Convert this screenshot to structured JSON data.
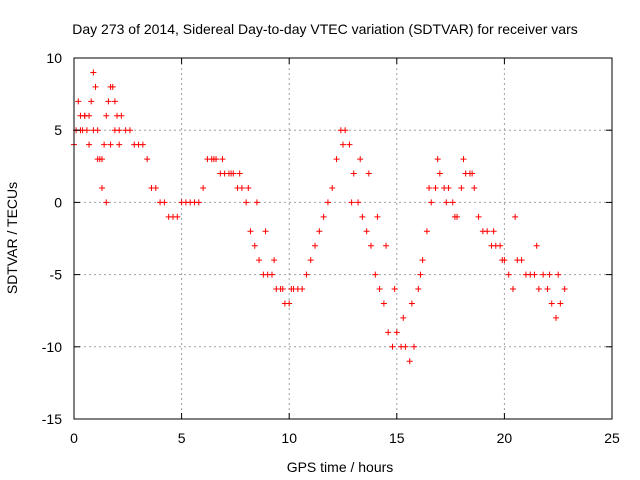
{
  "chart_data": {
    "type": "scatter",
    "title": "Day 273 of 2014, Sidereal Day-to-day VTEC variation (SDTVAR) for receiver vars",
    "xlabel": "GPS time / hours",
    "ylabel": "SDTVAR / TECUs",
    "xlim": [
      0,
      25
    ],
    "ylim": [
      -15,
      10
    ],
    "xticks": [
      0,
      5,
      10,
      15,
      20,
      25
    ],
    "yticks": [
      -15,
      -10,
      -5,
      0,
      5,
      10
    ],
    "xtick_labels": [
      "0",
      "5",
      "10",
      "15",
      "20",
      "25"
    ],
    "ytick_labels": [
      "-15",
      "-10",
      "-5",
      "0",
      "5",
      "10"
    ],
    "grid": true,
    "marker": "+",
    "series": [
      {
        "name": "SDTVAR",
        "color": "#ff0000",
        "x": [
          0.0,
          0.1,
          0.2,
          0.3,
          0.4,
          0.5,
          0.6,
          0.7,
          0.8,
          0.9,
          1.0,
          1.1,
          1.2,
          1.3,
          1.4,
          1.5,
          1.6,
          1.7,
          1.8,
          1.9,
          2.0,
          2.1,
          2.2,
          2.4,
          2.6,
          2.8,
          3.0,
          3.2,
          3.4,
          3.6,
          3.8,
          4.0,
          4.2,
          4.4,
          4.6,
          4.8,
          5.0,
          5.2,
          5.4,
          5.6,
          5.8,
          6.0,
          6.2,
          6.4,
          6.6,
          6.8,
          7.0,
          7.2,
          7.4,
          7.6,
          7.8,
          8.0,
          8.2,
          8.4,
          8.6,
          8.8,
          9.0,
          9.2,
          9.4,
          9.6,
          9.8,
          10.0,
          10.2,
          10.4,
          10.6,
          10.8,
          11.0,
          11.2,
          11.4,
          11.6,
          11.8,
          12.0,
          12.2,
          12.4,
          12.6,
          12.8,
          13.0,
          13.2,
          13.4,
          13.6,
          13.8,
          14.0,
          14.2,
          14.4,
          14.6,
          14.8,
          15.0,
          15.2,
          15.4,
          15.6,
          15.8,
          16.0,
          16.2,
          16.4,
          16.6,
          16.8,
          17.0,
          17.2,
          17.4,
          17.6,
          17.8,
          18.0,
          18.2,
          18.4,
          18.6,
          18.8,
          19.0,
          19.2,
          19.4,
          19.6,
          19.8,
          20.0,
          20.2,
          20.4,
          20.6,
          20.8,
          21.0,
          21.2,
          21.4,
          21.6,
          21.8,
          22.0,
          22.2,
          22.4,
          22.6,
          22.8,
          0.3,
          0.5,
          0.7,
          0.9,
          1.1,
          1.3,
          1.5,
          1.7,
          1.9,
          2.1,
          6.5,
          6.9,
          7.3,
          7.7,
          8.1,
          8.5,
          8.9,
          9.3,
          9.7,
          10.1,
          12.5,
          12.9,
          13.3,
          13.7,
          14.1,
          14.5,
          14.9,
          15.3,
          15.7,
          16.1,
          16.5,
          16.9,
          17.3,
          17.7,
          18.1,
          18.5,
          19.5,
          19.9,
          20.5,
          21.5,
          22.1,
          22.5
        ],
        "y": [
          4,
          5,
          7,
          6,
          5,
          6,
          5,
          4,
          7,
          9,
          8,
          5,
          3,
          1,
          4,
          6,
          7,
          8,
          8,
          7,
          6,
          5,
          6,
          5,
          5,
          4,
          4,
          4,
          3,
          1,
          1,
          0,
          0,
          -1,
          -1,
          -1,
          0,
          0,
          0,
          0,
          0,
          1,
          3,
          3,
          3,
          2,
          2,
          2,
          2,
          1,
          1,
          0,
          -2,
          -3,
          -4,
          -5,
          -5,
          -5,
          -6,
          -6,
          -7,
          -7,
          -6,
          -6,
          -6,
          -5,
          -4,
          -3,
          -2,
          -1,
          0,
          1,
          3,
          5,
          5,
          4,
          2,
          0,
          -1,
          -2,
          -3,
          -5,
          -6,
          -7,
          -9,
          -10,
          -9,
          -10,
          -10,
          -11,
          -10,
          -6,
          -4,
          -2,
          0,
          1,
          2,
          1,
          1,
          0,
          -1,
          1,
          2,
          2,
          1,
          -1,
          -2,
          -2,
          -3,
          -3,
          -3,
          -4,
          -5,
          -6,
          -4,
          -4,
          -5,
          -5,
          -5,
          -6,
          -5,
          -6,
          -7,
          -8,
          -7,
          -6,
          5,
          6,
          6,
          5,
          3,
          3,
          0,
          4,
          5,
          4,
          3,
          3,
          2,
          2,
          1,
          0,
          -2,
          -4,
          -6,
          -6,
          4,
          0,
          3,
          2,
          -1,
          -3,
          -6,
          -8,
          -7,
          -5,
          1,
          3,
          0,
          -1,
          3,
          2,
          -2,
          -4,
          -1,
          -3,
          -5,
          -5
        ]
      }
    ]
  }
}
